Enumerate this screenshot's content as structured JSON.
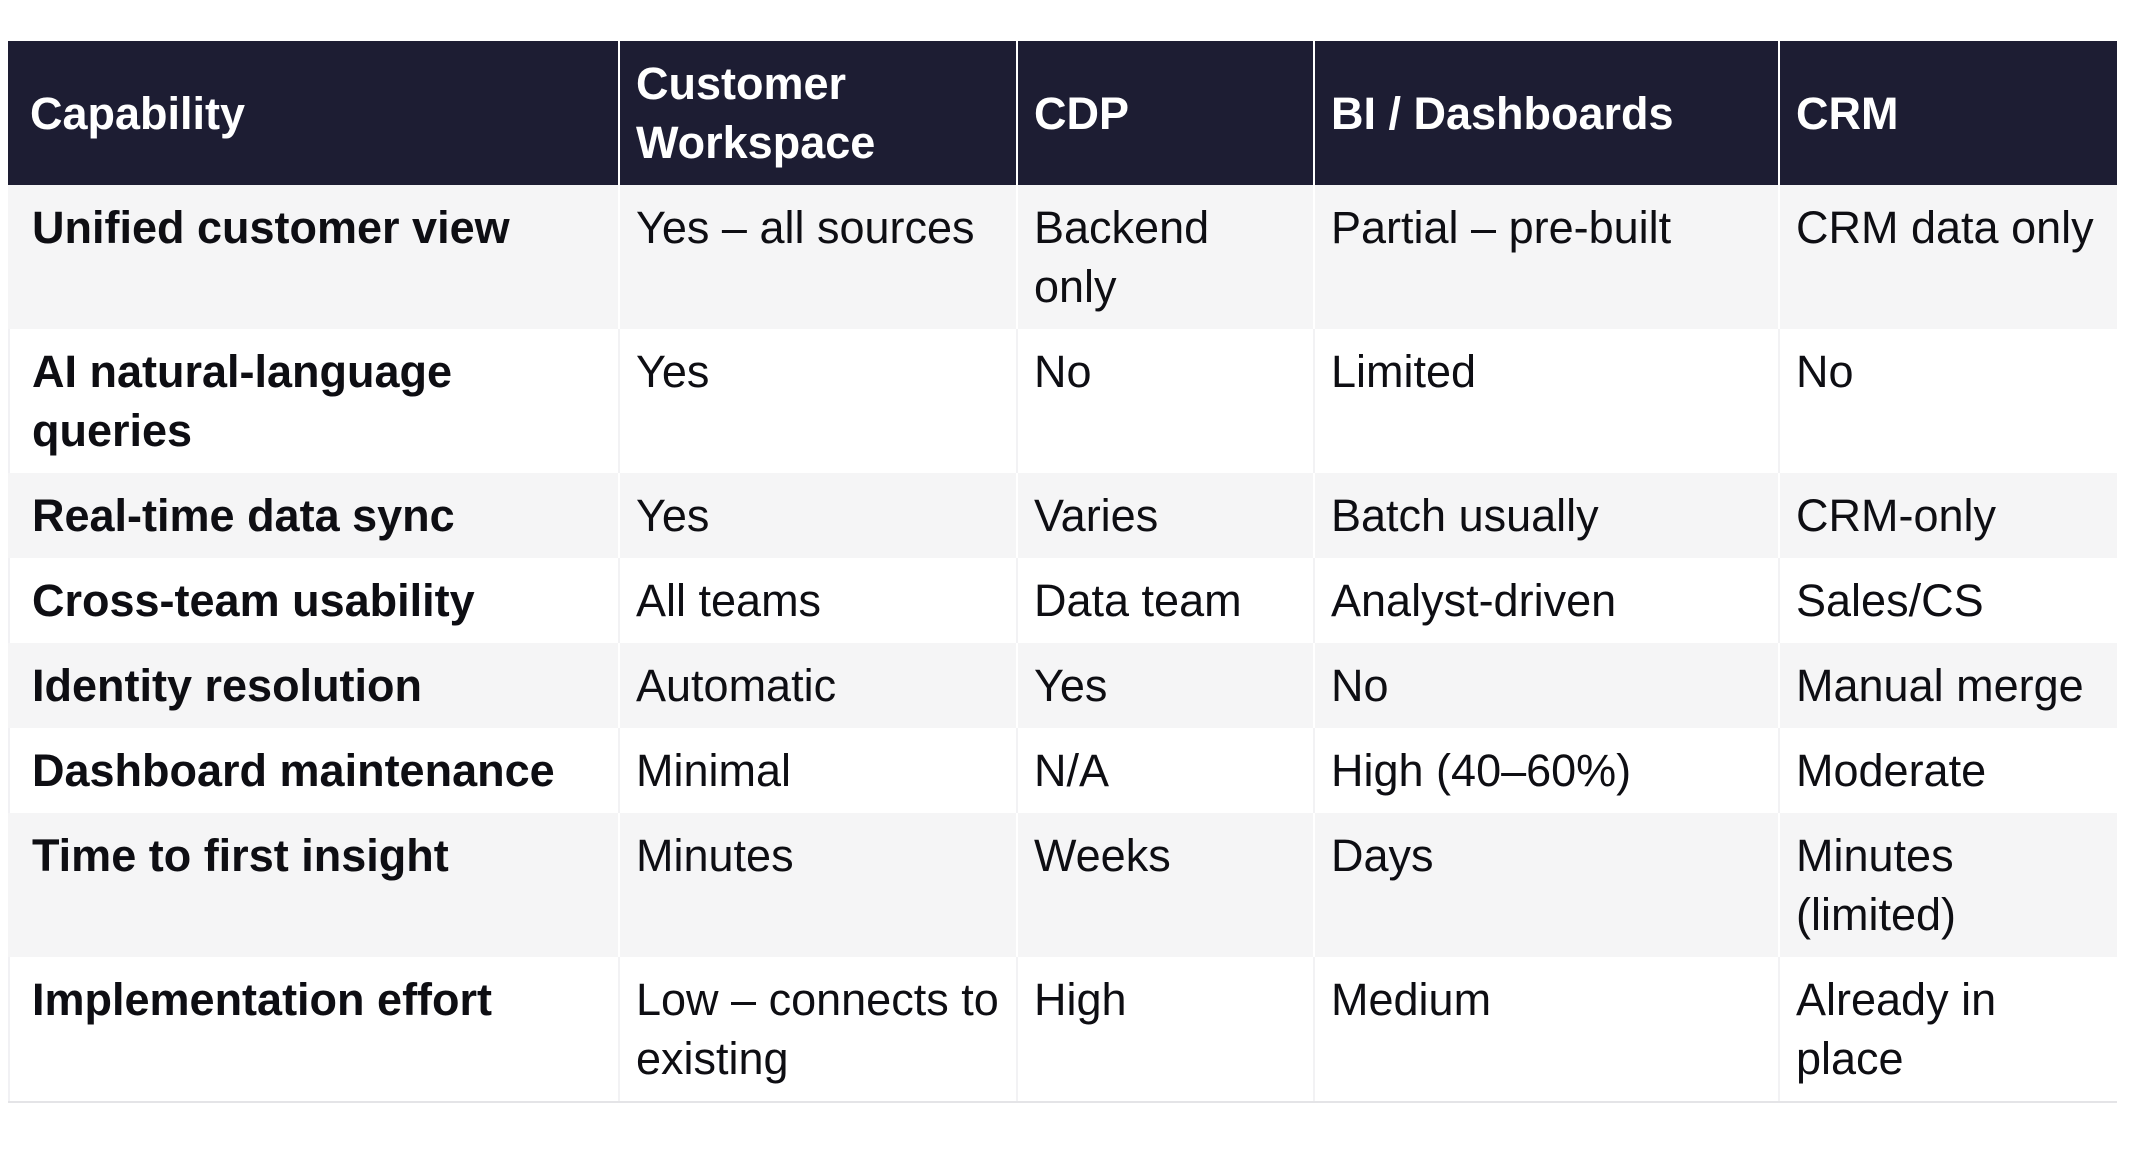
{
  "colors": {
    "header_bg": "#1d1d33",
    "header_text": "#ffffff",
    "body_text": "#0e0e13",
    "row_stripe_bg": "#f5f5f6",
    "row_white_bg": "#ffffff",
    "separator_on_stripe": "#ffffff",
    "separator_on_white": "#f2f2f4",
    "outer_left_border": "#f1f1f4",
    "table_bottom_border": "#e4e4e7"
  },
  "chart_data": {
    "type": "table",
    "title": "",
    "layout": {
      "striped": true,
      "first_stripe_row": 1,
      "header_style": "dark",
      "first_column_bold": true
    },
    "columns": [
      {
        "key": "capability",
        "label": "Capability"
      },
      {
        "key": "customer-workspace",
        "label": "Customer Workspace"
      },
      {
        "key": "cdp",
        "label": "CDP"
      },
      {
        "key": "bi-dashboards",
        "label": "BI / Dashboards"
      },
      {
        "key": "crm",
        "label": "CRM"
      }
    ],
    "rows": [
      [
        "Unified customer view",
        "Yes – all sources",
        "Backend only",
        "Partial – pre-built",
        "CRM data only"
      ],
      [
        "AI natural-language queries",
        "Yes",
        "No",
        "Limited",
        "No"
      ],
      [
        "Real-time data sync",
        "Yes",
        "Varies",
        "Batch usually",
        "CRM-only"
      ],
      [
        "Cross-team usability",
        "All teams",
        "Data team",
        "Analyst-driven",
        "Sales/CS"
      ],
      [
        "Identity resolution",
        "Automatic",
        "Yes",
        "No",
        "Manual merge"
      ],
      [
        "Dashboard maintenance",
        "Minimal",
        "N/A",
        "High (40–60%)",
        "Moderate"
      ],
      [
        "Time to first insight",
        "Minutes",
        "Weeks",
        "Days",
        "Minutes (limited)"
      ],
      [
        "Implementation effort",
        "Low – connects to existing",
        "High",
        "Medium",
        "Already in place"
      ]
    ]
  }
}
